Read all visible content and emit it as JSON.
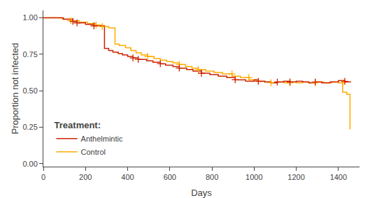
{
  "chart_data": {
    "type": "line",
    "xlabel": "Days",
    "ylabel": "Proportion not infected",
    "xlim": [
      0,
      1500
    ],
    "ylim": [
      -0.02,
      1.05
    ],
    "xticks": [
      0,
      200,
      400,
      600,
      800,
      1000,
      1200,
      1400
    ],
    "yticks": [
      {
        "value": 0.0,
        "label": "0.00"
      },
      0.25,
      {
        "value": 0.5,
        "label": "0.50"
      },
      0.75,
      {
        "value": 1.0,
        "label": "1.00"
      }
    ],
    "grid": false,
    "legend": "lower left",
    "legend_title": "Treatment:",
    "marker": "cross",
    "series": [
      {
        "name": "Anthelmintic",
        "color": "#cc2200",
        "x": [
          0,
          95,
          95,
          140,
          140,
          160,
          160,
          200,
          200,
          240,
          240,
          290,
          290,
          310,
          310,
          330,
          330,
          355,
          355,
          375,
          375,
          400,
          400,
          425,
          425,
          450,
          450,
          490,
          490,
          520,
          520,
          555,
          555,
          580,
          580,
          615,
          615,
          645,
          645,
          680,
          680,
          710,
          710,
          750,
          750,
          790,
          790,
          830,
          830,
          870,
          870,
          910,
          910,
          960,
          960,
          1000,
          1000,
          1020,
          1020,
          1050,
          1050,
          1080,
          1080,
          1110,
          1110,
          1140,
          1140,
          1170,
          1170,
          1200,
          1200,
          1230,
          1230,
          1260,
          1260,
          1290,
          1290,
          1320,
          1320,
          1360,
          1360,
          1400,
          1400,
          1430,
          1430,
          1460
        ],
        "values": [
          1.0,
          1.0,
          0.99,
          0.99,
          0.975,
          0.975,
          0.965,
          0.965,
          0.955,
          0.955,
          0.945,
          0.945,
          0.79,
          0.79,
          0.775,
          0.775,
          0.765,
          0.765,
          0.755,
          0.755,
          0.745,
          0.745,
          0.735,
          0.735,
          0.725,
          0.725,
          0.715,
          0.715,
          0.705,
          0.705,
          0.695,
          0.695,
          0.685,
          0.685,
          0.675,
          0.675,
          0.665,
          0.665,
          0.655,
          0.655,
          0.645,
          0.645,
          0.635,
          0.635,
          0.62,
          0.62,
          0.61,
          0.61,
          0.6,
          0.6,
          0.59,
          0.59,
          0.575,
          0.575,
          0.565,
          0.565,
          0.575,
          0.575,
          0.565,
          0.565,
          0.56,
          0.56,
          0.555,
          0.555,
          0.56,
          0.56,
          0.565,
          0.565,
          0.56,
          0.56,
          0.565,
          0.565,
          0.56,
          0.56,
          0.555,
          0.555,
          0.56,
          0.56,
          0.555,
          0.555,
          0.56,
          0.56,
          0.57,
          0.57,
          0.56,
          0.56
        ],
        "censor_x": [
          140,
          160,
          240,
          425,
          450,
          555,
          645,
          750,
          910,
          1020,
          1110,
          1170,
          1290,
          1430
        ],
        "censor_values": [
          0.975,
          0.965,
          0.945,
          0.725,
          0.715,
          0.685,
          0.655,
          0.62,
          0.575,
          0.565,
          0.56,
          0.56,
          0.56,
          0.565
        ]
      },
      {
        "name": "Control",
        "color": "#ffaa00",
        "x": [
          0,
          90,
          90,
          130,
          130,
          170,
          170,
          210,
          210,
          250,
          250,
          280,
          280,
          310,
          310,
          340,
          340,
          360,
          360,
          390,
          390,
          415,
          415,
          440,
          440,
          465,
          465,
          495,
          495,
          525,
          525,
          555,
          555,
          585,
          585,
          615,
          615,
          645,
          645,
          675,
          675,
          705,
          705,
          735,
          735,
          770,
          770,
          810,
          810,
          850,
          850,
          895,
          895,
          935,
          935,
          975,
          975,
          1010,
          1010,
          1050,
          1050,
          1080,
          1080,
          1110,
          1110,
          1140,
          1140,
          1170,
          1170,
          1200,
          1200,
          1230,
          1230,
          1260,
          1260,
          1290,
          1290,
          1330,
          1330,
          1370,
          1370,
          1400,
          1400,
          1420,
          1420,
          1440,
          1440,
          1455,
          1455
        ],
        "values": [
          1.0,
          1.0,
          0.99,
          0.99,
          0.98,
          0.98,
          0.97,
          0.97,
          0.96,
          0.96,
          0.95,
          0.95,
          0.94,
          0.94,
          0.93,
          0.93,
          0.82,
          0.82,
          0.81,
          0.81,
          0.795,
          0.795,
          0.775,
          0.775,
          0.76,
          0.76,
          0.745,
          0.745,
          0.735,
          0.735,
          0.72,
          0.72,
          0.71,
          0.71,
          0.7,
          0.7,
          0.69,
          0.69,
          0.68,
          0.68,
          0.665,
          0.665,
          0.655,
          0.655,
          0.645,
          0.645,
          0.635,
          0.635,
          0.625,
          0.625,
          0.615,
          0.615,
          0.6,
          0.6,
          0.59,
          0.59,
          0.575,
          0.575,
          0.565,
          0.565,
          0.56,
          0.56,
          0.555,
          0.555,
          0.56,
          0.56,
          0.555,
          0.555,
          0.56,
          0.56,
          0.555,
          0.555,
          0.56,
          0.56,
          0.555,
          0.555,
          0.56,
          0.56,
          0.555,
          0.555,
          0.56,
          0.56,
          0.555,
          0.555,
          0.49,
          0.49,
          0.475,
          0.475,
          0.235
        ],
        "censor_x": [
          130,
          250,
          280,
          495,
          645,
          735,
          895,
          975,
          1080,
          1170,
          1290,
          1420
        ],
        "censor_values": [
          0.98,
          0.95,
          0.94,
          0.735,
          0.68,
          0.645,
          0.615,
          0.59,
          0.555,
          0.555,
          0.555,
          0.555
        ]
      }
    ]
  }
}
